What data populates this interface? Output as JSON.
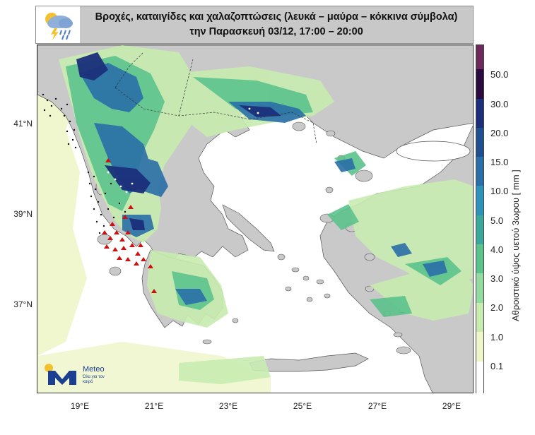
{
  "header": {
    "title": "Βροχές, καταιγίδες και χαλαζοπτώσεις (λευκά – μαύρα – κόκκινα σύμβολα) την Παρασκευή 03/12, 17:00 – 20:00",
    "icon": "rain-lightning-cloud-icon"
  },
  "map": {
    "y_ticks": [
      "41°N",
      "39°N",
      "37°N"
    ],
    "x_ticks": [
      "19°E",
      "21°E",
      "23°E",
      "25°E",
      "27°E",
      "29°E"
    ]
  },
  "colorbar": {
    "title": "Αθροιστικό ύψος υετού 3ωρου [ mm ]",
    "labels": [
      "50.0",
      "30.0",
      "20.0",
      "15.0",
      "10.0",
      "5.0",
      "4.0",
      "3.0",
      "2.0",
      "1.0",
      "0.1"
    ],
    "colors": [
      "#6b2a5a",
      "#2b0b3f",
      "#1b2f7a",
      "#1f4f8f",
      "#2a6fa8",
      "#2f92b8",
      "#3aa89a",
      "#5cc38c",
      "#93dba0",
      "#c8ecb0",
      "#eef5c8",
      "#ffffff"
    ]
  },
  "logo": {
    "name": "Meteo",
    "slogan": "Όλα για τον καιρό"
  }
}
